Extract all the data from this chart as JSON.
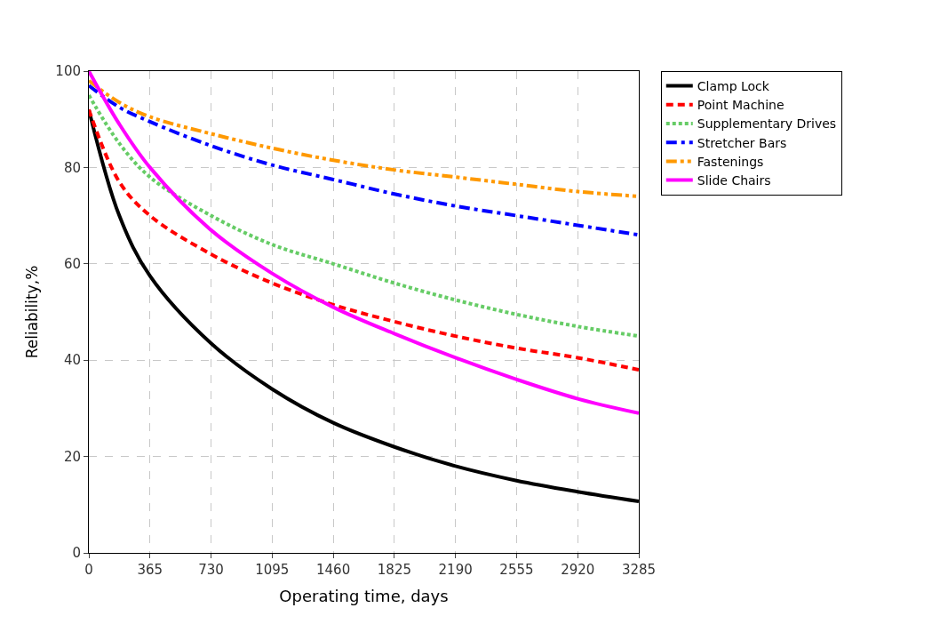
{
  "chart_data": {
    "type": "line",
    "xlabel": "Operating time, days",
    "ylabel": "Reliability,%",
    "x": [
      0,
      182,
      365,
      730,
      1095,
      1460,
      1825,
      2190,
      2555,
      2920,
      3285
    ],
    "series": [
      {
        "name": "Clamp Lock",
        "color": "#000000",
        "line_style": "solid",
        "values": [
          92,
          70,
          57.5,
          43.5,
          34,
          27,
          22,
          18,
          15,
          12.7,
          10.7
        ]
      },
      {
        "name": "Point Machine",
        "color": "#ff0000",
        "line_style": "dashed",
        "values": [
          92,
          77,
          70,
          62,
          56,
          51.5,
          48,
          45,
          42.5,
          40.5,
          38
        ]
      },
      {
        "name": "Supplementary Drives",
        "color": "#66cc66",
        "line_style": "dotted",
        "values": [
          95,
          85,
          78,
          70,
          64,
          60,
          56,
          52.5,
          49.5,
          47,
          45
        ]
      },
      {
        "name": "Stretcher Bars",
        "color": "#0000ff",
        "line_style": "dashdot",
        "values": [
          97,
          92.5,
          89.5,
          84.5,
          80.5,
          77.5,
          74.5,
          72,
          70,
          68,
          66
        ]
      },
      {
        "name": "Fastenings",
        "color": "#ff9900",
        "line_style": "dashdotdot",
        "values": [
          98,
          93.5,
          90.5,
          87,
          84,
          81.5,
          79.5,
          78,
          76.5,
          75,
          74
        ]
      },
      {
        "name": "Slide Chairs",
        "color": "#ff00ff",
        "line_style": "solid",
        "values": [
          100,
          89,
          80,
          67,
          58,
          51,
          45.5,
          40.5,
          36,
          32,
          29
        ]
      }
    ],
    "xlim": [
      0,
      3285
    ],
    "xticks": [
      0,
      365,
      730,
      1095,
      1460,
      1825,
      2190,
      2555,
      2920,
      3285
    ],
    "ylim": [
      0,
      100
    ],
    "yticks": [
      0,
      20,
      40,
      60,
      80,
      100
    ],
    "grid": true,
    "legend": "top right",
    "marker": "none"
  }
}
